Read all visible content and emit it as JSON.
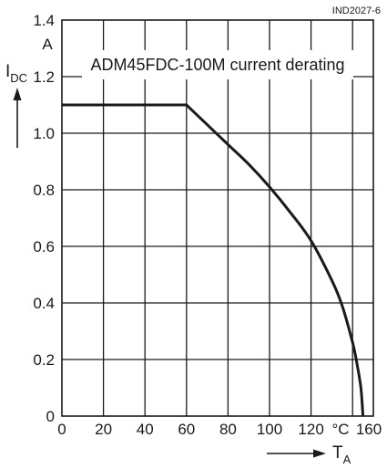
{
  "figure_id": "IND2027-6",
  "chart_data": {
    "type": "line",
    "title": "ADM45FDC-100M current derating",
    "ylabel": {
      "main": "I",
      "sub": "DC"
    },
    "yunit": "A",
    "xlabel": {
      "main": "T",
      "sub": "A"
    },
    "xunit": "°C",
    "xlim": [
      0,
      150
    ],
    "ylim": [
      0,
      1.4
    ],
    "xticks": [
      0,
      20,
      40,
      60,
      80,
      100,
      120,
      140,
      160
    ],
    "xtick_labels": [
      "0",
      "20",
      "40",
      "60",
      "80",
      "100",
      "120",
      "",
      "160"
    ],
    "yticks": [
      0,
      0.2,
      0.4,
      0.6,
      0.8,
      1.0,
      1.2,
      1.4
    ],
    "ytick_labels": [
      "0",
      "0.2",
      "0.4",
      "0.6",
      "0.8",
      "1.0",
      "1.2",
      "1.4"
    ],
    "grid": true,
    "series": [
      {
        "x": [
          0,
          60,
          70,
          80,
          90,
          100,
          110,
          120,
          130,
          135,
          140,
          142,
          144,
          145
        ],
        "y": [
          1.1,
          1.1,
          1.03,
          0.96,
          0.89,
          0.81,
          0.72,
          0.62,
          0.48,
          0.39,
          0.26,
          0.19,
          0.1,
          0
        ]
      }
    ],
    "color": "#1a1a1a"
  }
}
